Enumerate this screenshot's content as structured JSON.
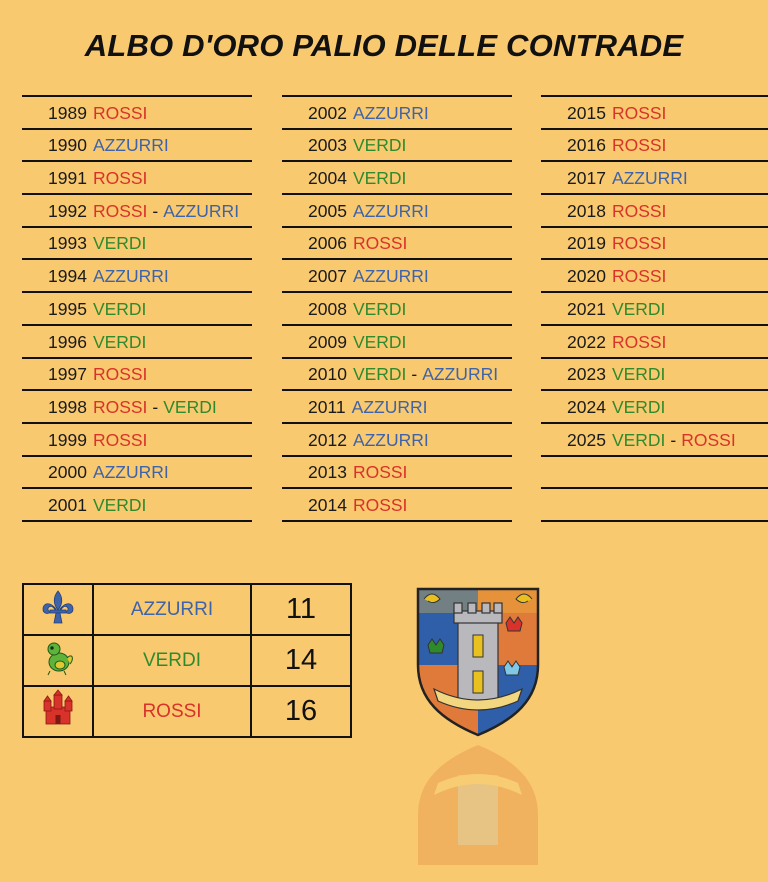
{
  "title": "ALBO D'ORO PALIO DELLE CONTRADE",
  "columns": [
    [
      {
        "year": "1989",
        "winners": [
          "ROSSI"
        ]
      },
      {
        "year": "1990",
        "winners": [
          "AZZURRI"
        ]
      },
      {
        "year": "1991",
        "winners": [
          "ROSSI"
        ]
      },
      {
        "year": "1992",
        "winners": [
          "ROSSI",
          "AZZURRI"
        ]
      },
      {
        "year": "1993",
        "winners": [
          "VERDI"
        ]
      },
      {
        "year": "1994",
        "winners": [
          "AZZURRI"
        ]
      },
      {
        "year": "1995",
        "winners": [
          "VERDI"
        ]
      },
      {
        "year": "1996",
        "winners": [
          "VERDI"
        ]
      },
      {
        "year": "1997",
        "winners": [
          "ROSSI"
        ]
      },
      {
        "year": "1998",
        "winners": [
          "ROSSI",
          "VERDI"
        ]
      },
      {
        "year": "1999",
        "winners": [
          "ROSSI"
        ]
      },
      {
        "year": "2000",
        "winners": [
          "AZZURRI"
        ]
      },
      {
        "year": "2001",
        "winners": [
          "VERDI"
        ]
      }
    ],
    [
      {
        "year": "2002",
        "winners": [
          "AZZURRI"
        ]
      },
      {
        "year": "2003",
        "winners": [
          "VERDI"
        ]
      },
      {
        "year": "2004",
        "winners": [
          "VERDI"
        ]
      },
      {
        "year": "2005",
        "winners": [
          "AZZURRI"
        ]
      },
      {
        "year": "2006",
        "winners": [
          "ROSSI"
        ]
      },
      {
        "year": "2007",
        "winners": [
          "AZZURRI"
        ]
      },
      {
        "year": "2008",
        "winners": [
          "VERDI"
        ]
      },
      {
        "year": "2009",
        "winners": [
          "VERDI"
        ]
      },
      {
        "year": "2010",
        "winners": [
          "VERDI",
          "AZZURRI"
        ]
      },
      {
        "year": "2011",
        "winners": [
          "AZZURRI"
        ]
      },
      {
        "year": "2012",
        "winners": [
          "AZZURRI"
        ]
      },
      {
        "year": "2013",
        "winners": [
          "ROSSI"
        ]
      },
      {
        "year": "2014",
        "winners": [
          "ROSSI"
        ]
      }
    ],
    [
      {
        "year": "2015",
        "winners": [
          "ROSSI"
        ]
      },
      {
        "year": "2016",
        "winners": [
          "ROSSI"
        ]
      },
      {
        "year": "2017",
        "winners": [
          "AZZURRI"
        ]
      },
      {
        "year": "2018",
        "winners": [
          "ROSSI"
        ]
      },
      {
        "year": "2019",
        "winners": [
          "ROSSI"
        ]
      },
      {
        "year": "2020",
        "winners": [
          "ROSSI"
        ]
      },
      {
        "year": "2021",
        "winners": [
          "VERDI"
        ]
      },
      {
        "year": "2022",
        "winners": [
          "ROSSI"
        ]
      },
      {
        "year": "2023",
        "winners": [
          "VERDI"
        ]
      },
      {
        "year": "2024",
        "winners": [
          "VERDI"
        ]
      },
      {
        "year": "2025",
        "winners": [
          "VERDI",
          "ROSSI"
        ]
      },
      {
        "year": "",
        "winners": []
      },
      {
        "year": "",
        "winners": []
      }
    ]
  ],
  "separator": "-",
  "tally": [
    {
      "name": "AZZURRI",
      "count": "11",
      "icon": "fleur-de-lis-icon",
      "color": "#3f63a8"
    },
    {
      "name": "VERDI",
      "count": "14",
      "icon": "green-dragon-icon",
      "color": "#2f8a2c"
    },
    {
      "name": "ROSSI",
      "count": "16",
      "icon": "red-castle-icon",
      "color": "#d8322a"
    }
  ],
  "colors": {
    "background": "#f9c96f",
    "ROSSI": "#d8322a",
    "AZZURRI": "#3f63a8",
    "VERDI": "#2f8a2c"
  }
}
